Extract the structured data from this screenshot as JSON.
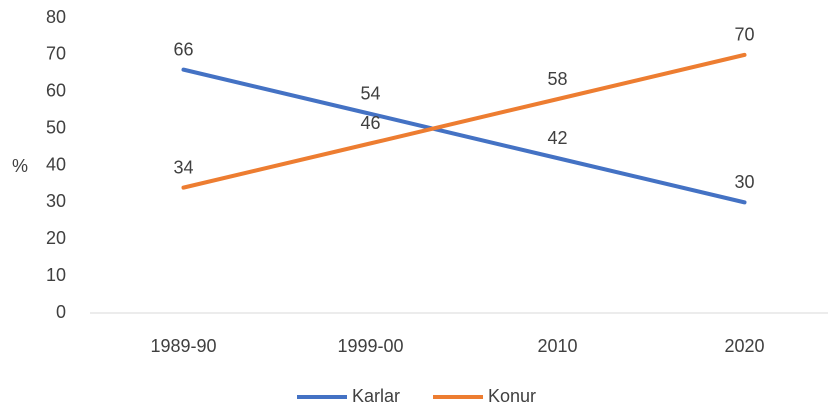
{
  "chart_data": {
    "type": "line",
    "y_label": "%",
    "categories": [
      "1989-90",
      "1999-00",
      "2010",
      "2020"
    ],
    "series": [
      {
        "name": "Karlar",
        "color": "#4472c4",
        "values": [
          66,
          54,
          42,
          30
        ]
      },
      {
        "name": "Konur",
        "color": "#ed7d31",
        "values": [
          34,
          46,
          58,
          70
        ]
      }
    ],
    "ylim": [
      0,
      80
    ],
    "yticks": [
      0,
      10,
      20,
      30,
      40,
      50,
      60,
      70,
      80
    ],
    "grid": false,
    "legend": "bottom"
  }
}
